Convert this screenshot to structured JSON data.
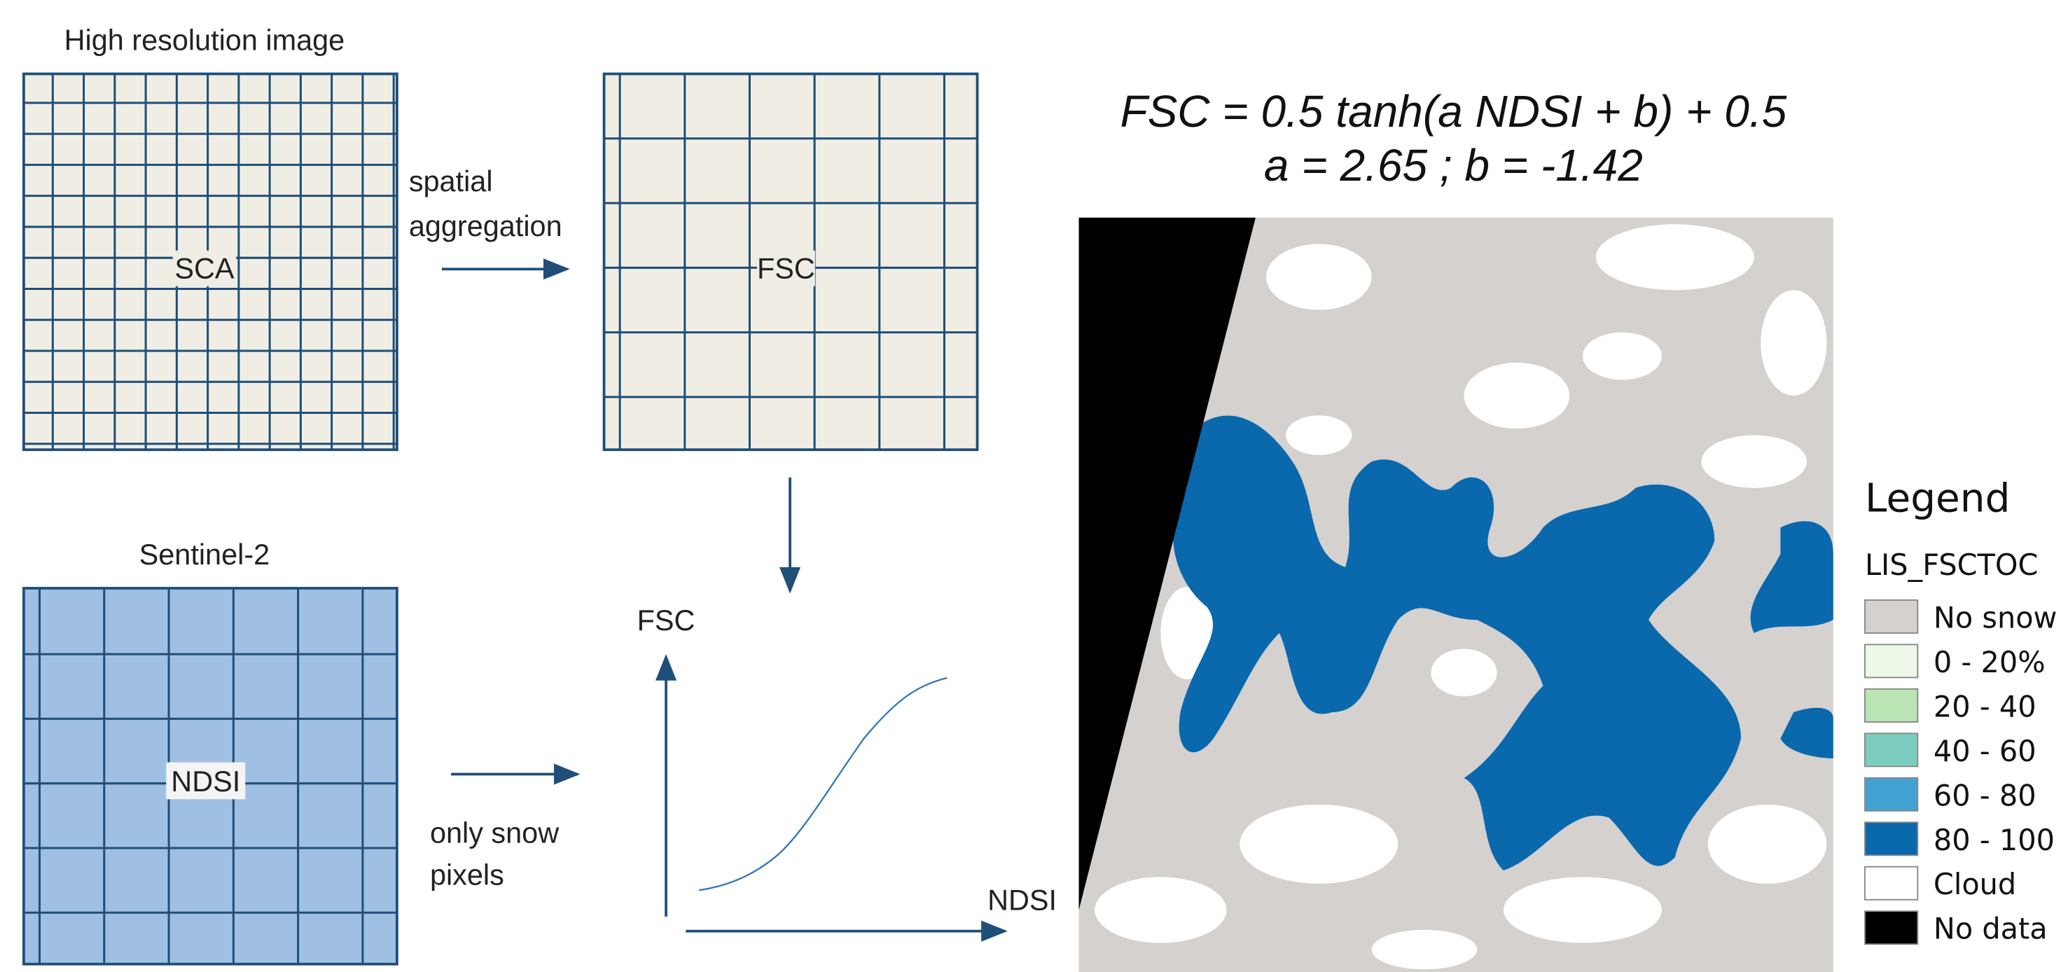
{
  "left": {
    "high_res": {
      "title": "High resolution image",
      "label": "SCA"
    },
    "aggregation": {
      "line1": "spatial",
      "line2": "aggregation"
    },
    "fsc_grid": {
      "label": "FSC"
    },
    "sentinel": {
      "title": "Sentinel-2",
      "label": "NDSI"
    },
    "snow_only": {
      "line1": "only snow",
      "line2": "pixels"
    },
    "graph": {
      "y_label": "FSC",
      "x_label": "NDSI"
    }
  },
  "formula": {
    "line1": "FSC = 0.5 tanh(a NDSI + b) + 0.5",
    "line2": "a = 2.65 ; b = -1.42"
  },
  "legend": {
    "title": "Legend",
    "layer": "LIS_FSCTOC",
    "items": [
      {
        "label": "No snow",
        "color": "#d4d1cf"
      },
      {
        "label": "0 - 20%",
        "color": "#edf8e9"
      },
      {
        "label": "20 - 40",
        "color": "#bae4b3"
      },
      {
        "label": "40 - 60",
        "color": "#7ccdc0"
      },
      {
        "label": "60 - 80",
        "color": "#42a2d2"
      },
      {
        "label": "80 - 100",
        "color": "#0a68ad"
      },
      {
        "label": "Cloud",
        "color": "#ffffff"
      },
      {
        "label": "No data",
        "color": "#000000"
      }
    ]
  }
}
